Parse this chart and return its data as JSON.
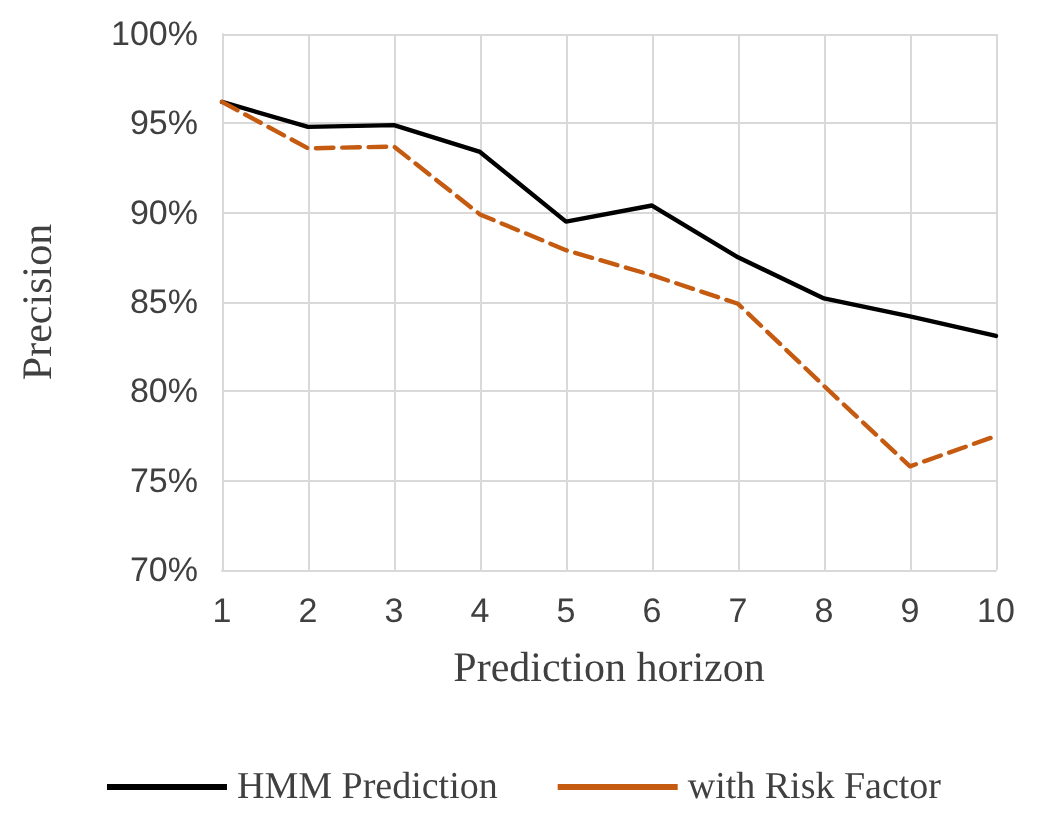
{
  "chart_data": {
    "type": "line",
    "xlabel": "Prediction horizon",
    "ylabel": "Precision",
    "categories": [
      "1",
      "2",
      "3",
      "4",
      "5",
      "6",
      "7",
      "8",
      "9",
      "10"
    ],
    "series": [
      {
        "name": "HMM Prediction",
        "color": "#000000",
        "line_style": "solid",
        "values": [
          96.2,
          94.8,
          94.9,
          93.4,
          89.5,
          90.4,
          87.5,
          85.2,
          84.2,
          83.1
        ]
      },
      {
        "name": "with Risk Factor",
        "color": "#c55a11",
        "line_style": "dashed",
        "values": [
          96.2,
          93.6,
          93.7,
          89.9,
          87.9,
          86.5,
          84.9,
          80.3,
          75.8,
          77.5
        ]
      }
    ],
    "ylim": [
      70,
      100
    ],
    "yticks": [
      {
        "value": 70,
        "label": "70%"
      },
      {
        "value": 75,
        "label": "75%"
      },
      {
        "value": 80,
        "label": "80%"
      },
      {
        "value": 85,
        "label": "85%"
      },
      {
        "value": 90,
        "label": "90%"
      },
      {
        "value": 95,
        "label": "95%"
      },
      {
        "value": 100,
        "label": "100%"
      }
    ],
    "grid": true,
    "legend": "bottom",
    "marker": "none"
  }
}
